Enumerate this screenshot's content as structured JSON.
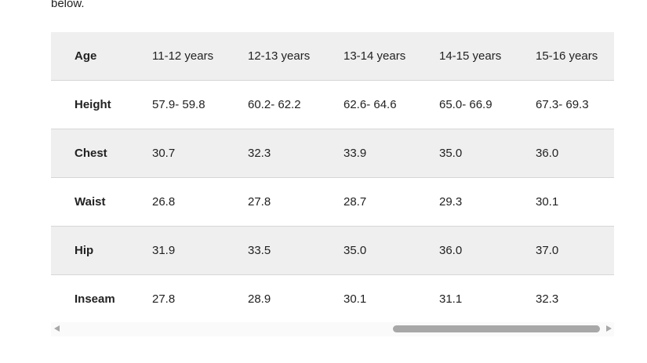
{
  "intro": {
    "text": "below."
  },
  "table": {
    "rows": [
      [
        "Age",
        "11-12 years",
        "12-13 years",
        "13-14 years",
        "14-15 years",
        "15-16 years"
      ],
      [
        "Height",
        "57.9- 59.8",
        "60.2- 62.2",
        "62.6- 64.6",
        "65.0- 66.9",
        "67.3- 69.3"
      ],
      [
        "Chest",
        "30.7",
        "32.3",
        "33.9",
        "35.0",
        "36.0"
      ],
      [
        "Waist",
        "26.8",
        "27.8",
        "28.7",
        "29.3",
        "30.1"
      ],
      [
        "Hip",
        "31.9",
        "33.5",
        "35.0",
        "36.0",
        "37.0"
      ],
      [
        "Inseam",
        "27.8",
        "28.9",
        "30.1",
        "31.1",
        "32.3"
      ]
    ]
  }
}
